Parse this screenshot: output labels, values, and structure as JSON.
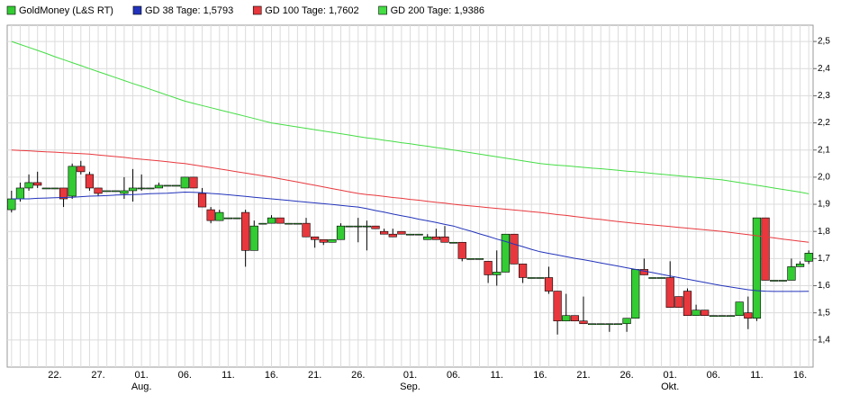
{
  "chart_data": {
    "type": "candlestick",
    "categories": [
      null,
      null,
      null,
      null,
      null,
      "22.",
      null,
      null,
      null,
      null,
      "27.",
      null,
      null,
      null,
      null,
      "01.",
      null,
      null,
      null,
      null,
      "06.",
      null,
      null,
      null,
      null,
      "11.",
      null,
      null,
      null,
      null,
      "16.",
      null,
      null,
      null,
      null,
      "21.",
      null,
      null,
      null,
      null,
      "26.",
      null,
      null,
      null,
      null,
      null,
      "01.",
      null,
      null,
      null,
      null,
      "06.",
      null,
      null,
      null,
      null,
      "11.",
      null,
      null,
      null,
      null,
      "16.",
      null,
      null,
      null,
      null,
      "21.",
      null,
      null,
      null,
      null,
      "26.",
      null,
      null,
      null,
      null,
      "01.",
      null,
      null,
      null,
      null,
      "06.",
      null,
      null,
      null,
      null,
      "11.",
      null,
      null,
      null,
      null,
      "16.",
      null
    ],
    "month_labels": [
      null,
      null,
      null,
      null,
      null,
      null,
      null,
      null,
      null,
      null,
      null,
      null,
      null,
      null,
      null,
      "Aug.",
      null,
      null,
      null,
      null,
      null,
      null,
      null,
      null,
      null,
      null,
      null,
      null,
      null,
      null,
      null,
      null,
      null,
      null,
      null,
      null,
      null,
      null,
      null,
      null,
      null,
      null,
      null,
      null,
      null,
      null,
      "Sep.",
      null,
      null,
      null,
      null,
      null,
      null,
      null,
      null,
      null,
      null,
      null,
      null,
      null,
      null,
      null,
      null,
      null,
      null,
      null,
      null,
      null,
      null,
      null,
      null,
      null,
      null,
      null,
      null,
      null,
      "Okt.",
      null,
      null,
      null,
      null,
      null,
      null,
      null,
      null,
      null,
      null,
      null,
      null,
      null,
      null,
      null,
      null
    ],
    "candles": {
      "name": "GoldMoney (L&S RT)",
      "color": "#33cc33",
      "up_color": "#33cc33",
      "down_color": "#e8383d",
      "open": [
        1.88,
        1.92,
        1.96,
        1.98,
        1.96,
        1.96,
        1.96,
        1.93,
        2.04,
        2.01,
        1.96,
        1.95,
        1.95,
        1.94,
        1.95,
        1.96,
        1.96,
        1.96,
        1.97,
        1.97,
        1.96,
        2.0,
        1.94,
        1.88,
        1.84,
        1.85,
        1.85,
        1.87,
        1.73,
        1.83,
        1.83,
        1.85,
        1.83,
        1.83,
        1.83,
        1.78,
        1.77,
        1.76,
        1.77,
        1.82,
        1.82,
        1.82,
        1.82,
        1.8,
        1.79,
        1.8,
        1.79,
        1.79,
        1.77,
        1.78,
        1.78,
        1.76,
        1.76,
        1.7,
        1.7,
        1.69,
        1.64,
        1.65,
        1.79,
        1.68,
        1.63,
        1.63,
        1.63,
        1.58,
        1.47,
        1.49,
        1.47,
        1.46,
        1.46,
        1.46,
        1.46,
        1.46,
        1.48,
        1.66,
        1.63,
        1.63,
        1.63,
        1.56,
        1.58,
        1.49,
        1.51,
        1.49,
        1.49,
        1.49,
        1.49,
        1.5,
        1.48,
        1.85,
        1.62,
        1.62,
        1.62,
        1.67,
        1.69
      ],
      "high": [
        1.95,
        1.98,
        2.01,
        2.02,
        1.96,
        1.96,
        1.96,
        2.05,
        2.06,
        2.02,
        1.96,
        1.95,
        1.95,
        2.0,
        2.03,
        2.01,
        1.96,
        1.98,
        1.97,
        1.97,
        2.0,
        2.0,
        1.96,
        1.89,
        1.88,
        1.85,
        1.85,
        1.88,
        1.84,
        1.83,
        1.86,
        1.85,
        1.83,
        1.83,
        1.85,
        1.78,
        1.77,
        1.77,
        1.83,
        1.82,
        1.85,
        1.84,
        1.82,
        1.81,
        1.81,
        1.8,
        1.79,
        1.79,
        1.79,
        1.81,
        1.82,
        1.76,
        1.76,
        1.7,
        1.7,
        1.69,
        1.73,
        1.79,
        1.79,
        1.68,
        1.63,
        1.63,
        1.67,
        1.58,
        1.57,
        1.49,
        1.56,
        1.46,
        1.46,
        1.46,
        1.46,
        1.48,
        1.66,
        1.7,
        1.63,
        1.63,
        1.69,
        1.56,
        1.59,
        1.53,
        1.51,
        1.49,
        1.49,
        1.49,
        1.54,
        1.56,
        1.85,
        1.85,
        1.62,
        1.62,
        1.7,
        1.69,
        1.73
      ],
      "low": [
        1.87,
        1.91,
        1.95,
        1.96,
        1.96,
        1.96,
        1.89,
        1.92,
        2.01,
        1.95,
        1.93,
        1.95,
        1.95,
        1.92,
        1.91,
        1.95,
        1.96,
        1.96,
        1.97,
        1.97,
        1.96,
        1.96,
        1.89,
        1.83,
        1.84,
        1.85,
        1.85,
        1.67,
        1.73,
        1.83,
        1.83,
        1.83,
        1.83,
        1.83,
        1.78,
        1.74,
        1.75,
        1.76,
        1.77,
        1.82,
        1.76,
        1.73,
        1.81,
        1.79,
        1.78,
        1.79,
        1.79,
        1.79,
        1.77,
        1.77,
        1.76,
        1.76,
        1.69,
        1.7,
        1.7,
        1.61,
        1.6,
        1.65,
        1.68,
        1.61,
        1.63,
        1.63,
        1.57,
        1.42,
        1.47,
        1.47,
        1.46,
        1.46,
        1.46,
        1.43,
        1.46,
        1.43,
        1.48,
        1.64,
        1.63,
        1.63,
        1.52,
        1.52,
        1.49,
        1.49,
        1.49,
        1.49,
        1.49,
        1.49,
        1.49,
        1.44,
        1.47,
        1.62,
        1.62,
        1.62,
        1.62,
        1.67,
        1.68
      ],
      "close": [
        1.92,
        1.96,
        1.98,
        1.97,
        1.96,
        1.96,
        1.92,
        2.04,
        2.02,
        1.96,
        1.94,
        1.95,
        1.95,
        1.95,
        1.96,
        1.96,
        1.96,
        1.97,
        1.97,
        1.97,
        2.0,
        1.96,
        1.89,
        1.84,
        1.87,
        1.85,
        1.85,
        1.73,
        1.82,
        1.83,
        1.85,
        1.83,
        1.83,
        1.83,
        1.78,
        1.77,
        1.76,
        1.77,
        1.82,
        1.82,
        1.82,
        1.82,
        1.81,
        1.79,
        1.78,
        1.79,
        1.79,
        1.79,
        1.78,
        1.77,
        1.76,
        1.76,
        1.7,
        1.7,
        1.7,
        1.64,
        1.65,
        1.79,
        1.68,
        1.63,
        1.63,
        1.63,
        1.58,
        1.47,
        1.49,
        1.47,
        1.46,
        1.46,
        1.46,
        1.46,
        1.46,
        1.48,
        1.66,
        1.64,
        1.63,
        1.63,
        1.52,
        1.52,
        1.49,
        1.51,
        1.49,
        1.49,
        1.49,
        1.49,
        1.54,
        1.48,
        1.85,
        1.62,
        1.62,
        1.62,
        1.67,
        1.68,
        1.72
      ]
    },
    "series": [
      {
        "name": "GD 38 Tage: 1,5793",
        "color": "#2233bb",
        "values": [
          1.92,
          1.92,
          1.92,
          1.922,
          1.923,
          1.924,
          1.925,
          1.926,
          1.928,
          1.93,
          1.931,
          1.932,
          1.934,
          1.935,
          1.936,
          1.937,
          1.939,
          1.94,
          1.941,
          1.943,
          1.945,
          1.944,
          1.943,
          1.94,
          1.938,
          1.935,
          1.932,
          1.929,
          1.926,
          1.923,
          1.92,
          1.917,
          1.914,
          1.911,
          1.908,
          1.905,
          1.902,
          1.899,
          1.896,
          1.893,
          1.89,
          1.884,
          1.877,
          1.871,
          1.864,
          1.858,
          1.852,
          1.845,
          1.839,
          1.833,
          1.826,
          1.82,
          1.81,
          1.801,
          1.791,
          1.782,
          1.772,
          1.763,
          1.753,
          1.744,
          1.734,
          1.725,
          1.719,
          1.713,
          1.707,
          1.701,
          1.696,
          1.69,
          1.684,
          1.678,
          1.672,
          1.666,
          1.66,
          1.654,
          1.648,
          1.642,
          1.636,
          1.63,
          1.624,
          1.618,
          1.612,
          1.606,
          1.6,
          1.595,
          1.59,
          1.585,
          1.582,
          1.58,
          1.579,
          1.579,
          1.579,
          1.579,
          1.5793
        ]
      },
      {
        "name": "GD 100 Tage: 1,7602",
        "color": "#e8383d",
        "values": [
          2.1,
          2.098,
          2.097,
          2.095,
          2.093,
          2.092,
          2.09,
          2.088,
          2.087,
          2.085,
          2.082,
          2.079,
          2.076,
          2.073,
          2.069,
          2.066,
          2.063,
          2.06,
          2.057,
          2.053,
          2.05,
          2.045,
          2.04,
          2.035,
          2.03,
          2.025,
          2.02,
          2.015,
          2.01,
          2.005,
          2.0,
          1.994,
          1.988,
          1.982,
          1.976,
          1.97,
          1.964,
          1.958,
          1.952,
          1.946,
          1.94,
          1.936,
          1.933,
          1.929,
          1.925,
          1.922,
          1.918,
          1.915,
          1.911,
          1.907,
          1.904,
          1.9,
          1.897,
          1.894,
          1.891,
          1.888,
          1.885,
          1.882,
          1.879,
          1.876,
          1.873,
          1.87,
          1.866,
          1.862,
          1.859,
          1.855,
          1.851,
          1.847,
          1.844,
          1.84,
          1.836,
          1.833,
          1.83,
          1.827,
          1.824,
          1.821,
          1.818,
          1.815,
          1.812,
          1.809,
          1.806,
          1.803,
          1.8,
          1.796,
          1.792,
          1.788,
          1.784,
          1.78,
          1.776,
          1.772,
          1.768,
          1.764,
          1.7602
        ]
      },
      {
        "name": "GD 200 Tage: 1,9386",
        "color": "#44dd44",
        "values": [
          2.5,
          2.489,
          2.478,
          2.467,
          2.456,
          2.444,
          2.433,
          2.422,
          2.411,
          2.4,
          2.389,
          2.378,
          2.367,
          2.356,
          2.345,
          2.335,
          2.324,
          2.313,
          2.302,
          2.291,
          2.28,
          2.272,
          2.264,
          2.256,
          2.248,
          2.24,
          2.232,
          2.224,
          2.216,
          2.208,
          2.2,
          2.195,
          2.19,
          2.185,
          2.18,
          2.175,
          2.17,
          2.165,
          2.16,
          2.155,
          2.15,
          2.145,
          2.141,
          2.136,
          2.132,
          2.127,
          2.123,
          2.118,
          2.114,
          2.109,
          2.105,
          2.1,
          2.095,
          2.09,
          2.085,
          2.08,
          2.075,
          2.07,
          2.065,
          2.06,
          2.055,
          2.05,
          2.047,
          2.044,
          2.042,
          2.039,
          2.036,
          2.033,
          2.031,
          2.028,
          2.025,
          2.022,
          2.02,
          2.017,
          2.014,
          2.011,
          2.008,
          2.005,
          2.002,
          1.999,
          1.996,
          1.993,
          1.99,
          1.985,
          1.98,
          1.975,
          1.97,
          1.965,
          1.96,
          1.955,
          1.95,
          1.945,
          1.9386
        ]
      }
    ],
    "ylim": [
      1.3,
      2.56
    ],
    "yticks": [
      {
        "value": 1.4,
        "label": "1,4"
      },
      {
        "value": 1.5,
        "label": "1,5"
      },
      {
        "value": 1.6,
        "label": "1,6"
      },
      {
        "value": 1.7,
        "label": "1,7"
      },
      {
        "value": 1.8,
        "label": "1,8"
      },
      {
        "value": 1.9,
        "label": "1,9"
      },
      {
        "value": 2.0,
        "label": "2,0"
      },
      {
        "value": 2.1,
        "label": "2,1"
      },
      {
        "value": 2.2,
        "label": "2,2"
      },
      {
        "value": 2.3,
        "label": "2,3"
      },
      {
        "value": 2.4,
        "label": "2,4"
      },
      {
        "value": 2.5,
        "label": "2,5"
      }
    ],
    "grid": true
  }
}
